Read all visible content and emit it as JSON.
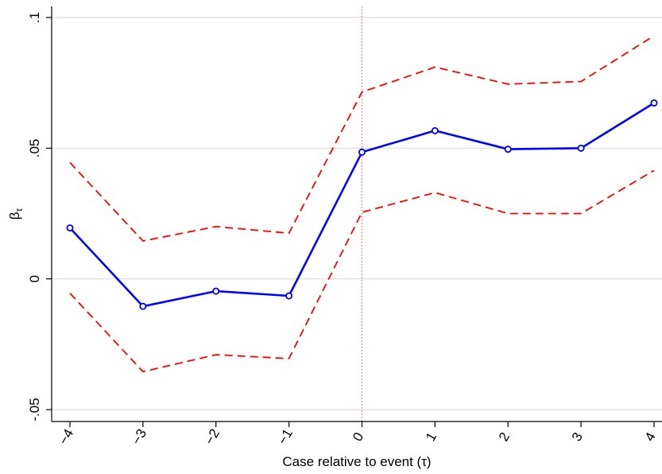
{
  "chart_data": {
    "type": "line",
    "xlabel": "Case relative to event (τ)",
    "ylabel": "β",
    "ylabel_subscript": "τ",
    "x": [
      -4,
      -3,
      -2,
      -1,
      0,
      1,
      2,
      3,
      4
    ],
    "x_tick_labels": [
      "−4",
      "−3",
      "−2",
      "−1",
      "0",
      "1",
      "2",
      "3",
      "4"
    ],
    "xlim": [
      -4,
      4
    ],
    "ylim": [
      -0.0505,
      0.1005
    ],
    "y_ticks": [
      -0.05,
      0,
      0.05,
      0.1
    ],
    "y_tick_labels": [
      "-.05",
      "0",
      ".05",
      ".1"
    ],
    "grid": true,
    "event_line_x": 0,
    "series": [
      {
        "role": "estimate",
        "style": "solid-with-markers",
        "color": "#0000ff",
        "values": [
          0.0195,
          -0.0105,
          -0.0047,
          -0.0065,
          0.0485,
          0.0567,
          0.0496,
          0.05,
          0.0673
        ]
      },
      {
        "role": "upper-bound",
        "style": "dashed",
        "color": "#ff0000",
        "values": [
          0.0445,
          0.0145,
          0.02,
          0.0175,
          0.0715,
          0.081,
          0.0745,
          0.0755,
          0.093
        ]
      },
      {
        "role": "lower-bound",
        "style": "dashed",
        "color": "#ff0000",
        "values": [
          -0.0055,
          -0.0355,
          -0.029,
          -0.0305,
          0.0255,
          0.033,
          0.025,
          0.025,
          0.0415
        ]
      }
    ],
    "colors": {
      "grid": "#dcdcdc",
      "axis": "#000000",
      "event_line": "#ff6347",
      "background": "#ffffff"
    }
  }
}
